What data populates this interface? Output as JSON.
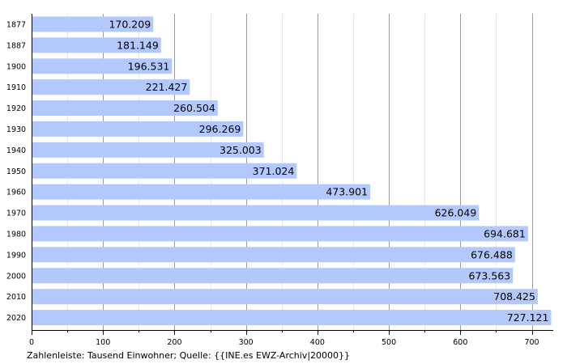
{
  "chart_data": {
    "type": "bar",
    "orientation": "horizontal",
    "categories": [
      "1877",
      "1887",
      "1900",
      "1910",
      "1920",
      "1930",
      "1940",
      "1950",
      "1960",
      "1970",
      "1980",
      "1990",
      "2000",
      "2010",
      "2020"
    ],
    "values": [
      170.209,
      181.149,
      196.531,
      221.427,
      260.504,
      296.269,
      325.003,
      371.024,
      473.901,
      626.049,
      694.681,
      676.488,
      673.563,
      708.425,
      727.121
    ],
    "value_labels": [
      "170.209",
      "181.149",
      "196.531",
      "221.427",
      "260.504",
      "296.269",
      "325.003",
      "371.024",
      "473.901",
      "626.049",
      "694.681",
      "676.488",
      "673.563",
      "708.425",
      "727.121"
    ],
    "xlim": [
      0,
      730
    ],
    "xticks": [
      0,
      100,
      200,
      300,
      400,
      500,
      600,
      700
    ],
    "minor_tick_step": 50,
    "grid": true,
    "bar_color": "#b3c9fd",
    "caption": "Zahlenleiste: Tausend Einwohner; Quelle: {{INE.es EWZ-Archiv|20000}}"
  }
}
